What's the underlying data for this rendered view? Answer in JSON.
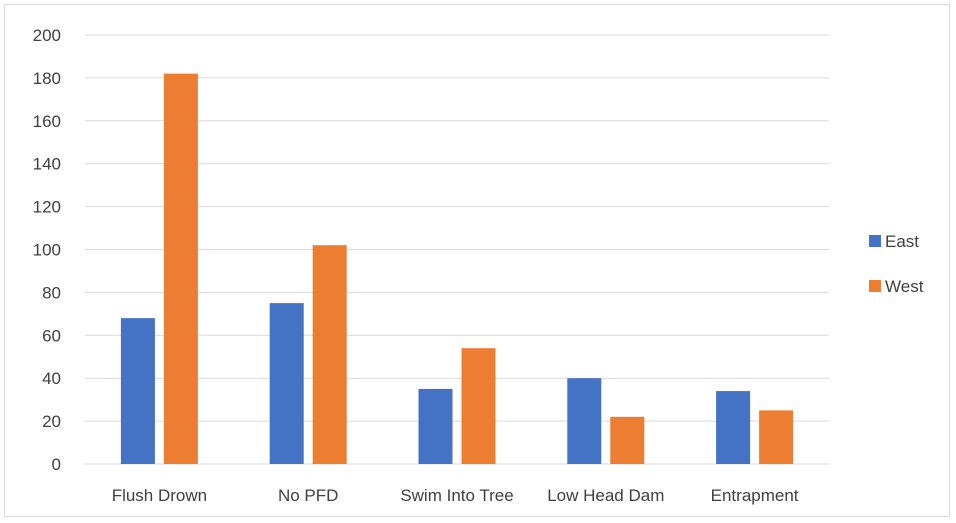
{
  "chart_data": {
    "type": "bar",
    "title": "",
    "xlabel": "",
    "ylabel": "",
    "categories": [
      "Flush Drown",
      "No PFD",
      "Swim Into Tree",
      "Low Head Dam",
      "Entrapment"
    ],
    "series": [
      {
        "name": "East",
        "color": "#4472c4",
        "values": [
          68,
          75,
          35,
          40,
          34
        ]
      },
      {
        "name": "West",
        "color": "#ed7d31",
        "values": [
          182,
          102,
          54,
          22,
          25
        ]
      }
    ],
    "ylim": [
      0,
      200
    ],
    "yticks": [
      0,
      20,
      40,
      60,
      80,
      100,
      120,
      140,
      160,
      180,
      200
    ],
    "grid": true,
    "legend": "right"
  }
}
